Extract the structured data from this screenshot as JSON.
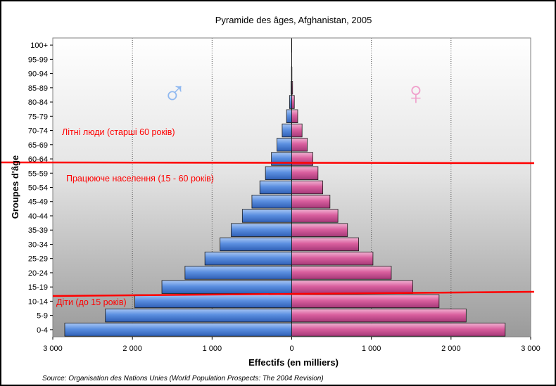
{
  "chart_data": {
    "type": "bar",
    "orientation": "horizontal",
    "layout": "population-pyramid",
    "title": "Pyramide des âges, Afghanistan, 2005",
    "xlabel": "Effectifs (en milliers)",
    "ylabel": "Groupes d'âge",
    "source": "Source: Organisation des Nations Unies (World Population Prospects: The 2004 Revision)",
    "xlim": [
      -3000,
      3000
    ],
    "xticks": [
      -3000,
      -2000,
      -1000,
      0,
      1000,
      2000,
      3000
    ],
    "xtick_labels": [
      "3 000",
      "2 000",
      "1 000",
      "0",
      "1 000",
      "2 000",
      "3 000"
    ],
    "grid": "vertical-dotted",
    "categories": [
      "0-4",
      "5-9",
      "10-14",
      "15-19",
      "20-24",
      "25-29",
      "30-34",
      "35-39",
      "40-44",
      "45-49",
      "50-54",
      "55-59",
      "60-64",
      "65-69",
      "70-74",
      "75-79",
      "80-84",
      "85-89",
      "90-94",
      "95-99",
      "100+"
    ],
    "series": [
      {
        "side": "left",
        "symbol": "♂",
        "color": "#5b8fe0",
        "values": [
          2850,
          2340,
          1970,
          1630,
          1340,
          1090,
          900,
          760,
          620,
          500,
          400,
          330,
          255,
          185,
          120,
          65,
          28,
          9,
          3,
          1,
          0
        ]
      },
      {
        "side": "right",
        "symbol": "♀",
        "color": "#d95f9e",
        "values": [
          2680,
          2190,
          1850,
          1520,
          1250,
          1020,
          840,
          700,
          580,
          480,
          390,
          330,
          265,
          195,
          130,
          75,
          33,
          11,
          3,
          1,
          0
        ]
      }
    ],
    "annotations": [
      {
        "text": "Літні люди (старші 60 років)",
        "color": "#ff0000"
      },
      {
        "text": "Працююче населення (15 - 60 років)",
        "color": "#ff0000"
      },
      {
        "text": "Діти (до 15 років)",
        "color": "#ff0000"
      }
    ],
    "divider_lines": [
      {
        "between": [
          "60-64",
          "55-59"
        ],
        "color": "#ff0000"
      },
      {
        "between": [
          "15-19",
          "10-14"
        ],
        "color": "#ff0000"
      }
    ]
  }
}
